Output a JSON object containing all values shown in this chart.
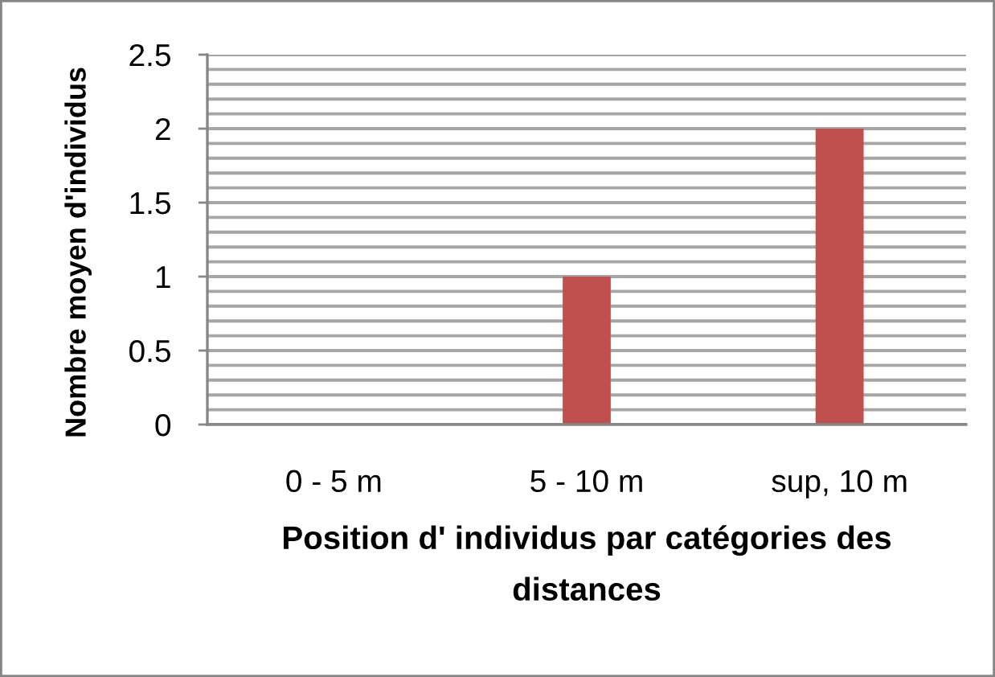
{
  "chart_data": {
    "type": "bar",
    "categories": [
      "0 - 5 m",
      "5 - 10 m",
      "sup, 10 m"
    ],
    "values": [
      0,
      1,
      2
    ],
    "color": "#c0504d",
    "xlabel": "Position d' individus par catégories des\ndistances",
    "ylabel": "Nombre moyen d'individus",
    "ylim": [
      0,
      2.5
    ],
    "yticks": [
      0,
      {
        "value": 0.1,
        "label": null
      },
      {
        "value": 0.2,
        "label": null
      },
      {
        "value": 0.3,
        "label": null
      },
      {
        "value": 0.4,
        "label": null
      },
      0.5,
      {
        "value": 0.6,
        "label": null
      },
      {
        "value": 0.7,
        "label": null
      },
      {
        "value": 0.8,
        "label": null
      },
      {
        "value": 0.9,
        "label": null
      },
      1,
      {
        "value": 1.1,
        "label": null
      },
      {
        "value": 1.2,
        "label": null
      },
      {
        "value": 1.3,
        "label": null
      },
      {
        "value": 1.4,
        "label": null
      },
      1.5,
      {
        "value": 1.6,
        "label": null
      },
      {
        "value": 1.7,
        "label": null
      },
      {
        "value": 1.8,
        "label": null
      },
      {
        "value": 1.9,
        "label": null
      },
      2,
      {
        "value": 2.1,
        "label": null
      },
      {
        "value": 2.2,
        "label": null
      },
      {
        "value": 2.3,
        "label": null
      },
      {
        "value": 2.4,
        "label": null
      },
      2.5
    ],
    "grid": "y"
  }
}
